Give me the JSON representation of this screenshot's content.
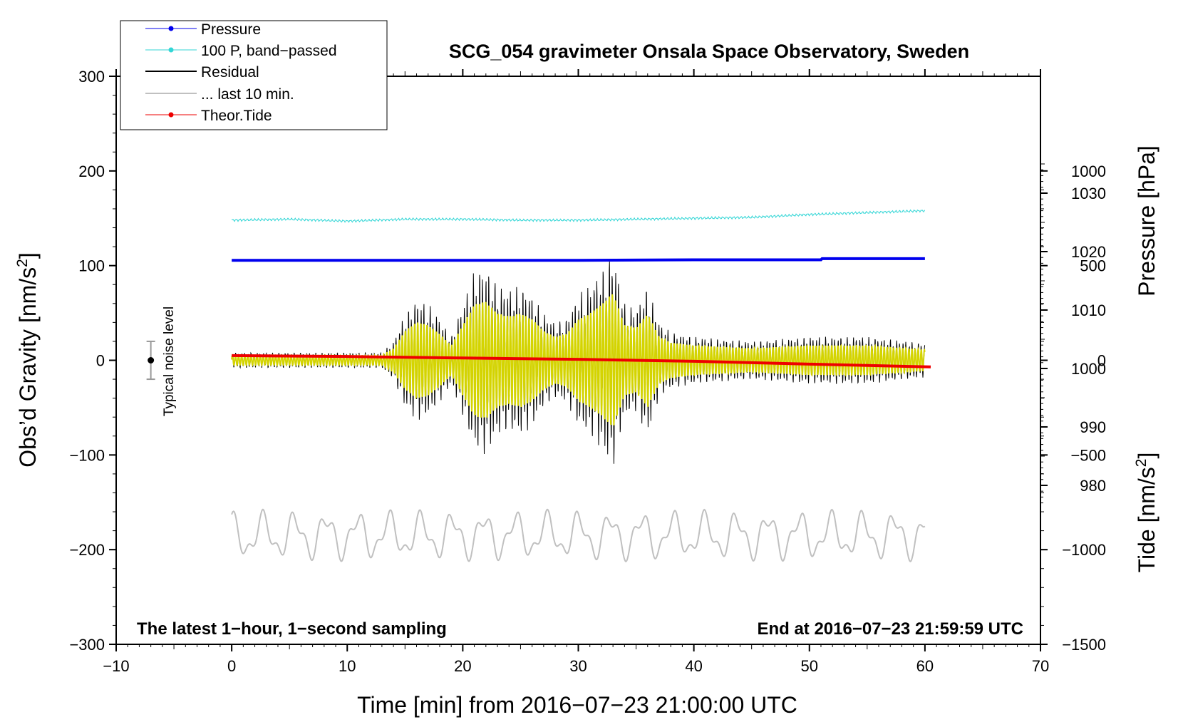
{
  "chart_data": {
    "type": "line",
    "title": "SCG_054 gravimeter Onsala Space Observatory, Sweden",
    "xlabel": "Time [min] from 2016−07−23 21:00:00 UTC",
    "ylabel_left": "Obs’d Gravity [nm/s",
    "ylabel_pressure": "Pressure [hPa]",
    "ylabel_tide": "Tide [nm/s",
    "unit_superscript": "2",
    "unit_close": "]",
    "xlim": [
      -10,
      70
    ],
    "ylim_left": [
      -300,
      300
    ],
    "x_ticks": [
      -10,
      0,
      10,
      20,
      30,
      40,
      50,
      60,
      70
    ],
    "x_tick_labels": [
      "−10",
      "0",
      "10",
      "20",
      "30",
      "40",
      "50",
      "60",
      "70"
    ],
    "y_ticks_left": [
      -300,
      -200,
      -100,
      0,
      100,
      200,
      300
    ],
    "y_tick_labels_left": [
      "−300",
      "−200",
      "−100",
      "0",
      "100",
      "200",
      "300"
    ],
    "pressure_axis": {
      "ticks": [
        980,
        990,
        1000,
        1010,
        1020,
        1030
      ],
      "labels": [
        "980",
        "990",
        "1000",
        "1010",
        "1020",
        "1030"
      ],
      "range": [
        952.8,
        1050.0
      ]
    },
    "tide_axis": {
      "ticks": [
        -1500,
        -1000,
        -500,
        0,
        500,
        1000
      ],
      "labels": [
        "−1500",
        "−1000",
        "−500",
        "0",
        "500",
        "1000"
      ],
      "range": [
        -1500,
        1500
      ]
    },
    "series": [
      {
        "name": "Pressure",
        "color": "#0000ee",
        "x": [
          0,
          10,
          20,
          30,
          40,
          51,
          51.1,
          60
        ],
        "y": [
          1018.5,
          1018.5,
          1018.5,
          1018.5,
          1018.6,
          1018.6,
          1018.8,
          1018.8
        ]
      },
      {
        "name": "100 P, band−passed",
        "color": "#33d6d6",
        "x": [
          0,
          5,
          10,
          15,
          20,
          25,
          30,
          35,
          40,
          45,
          50,
          55,
          60
        ],
        "y": [
          148,
          149,
          147,
          149,
          149,
          148,
          148,
          149,
          150,
          151,
          154,
          156,
          158
        ]
      },
      {
        "name": "Residual",
        "color": "#000000",
        "envelope_x": [
          0,
          5,
          10,
          13,
          14,
          15,
          16,
          17,
          18,
          19,
          20,
          21,
          22,
          23,
          24,
          25,
          26,
          27,
          28,
          29,
          30,
          31,
          32,
          33,
          34,
          35,
          36,
          37,
          38,
          40,
          45,
          50,
          55,
          60
        ],
        "envelope_amp": [
          8,
          8,
          8,
          8,
          20,
          50,
          65,
          60,
          45,
          25,
          60,
          95,
          100,
          80,
          75,
          80,
          70,
          50,
          40,
          45,
          70,
          80,
          95,
          115,
          60,
          55,
          80,
          40,
          30,
          25,
          20,
          25,
          25,
          18
        ]
      },
      {
        "name": "... last 10 min.",
        "color": "#c0c0c0",
        "x_range": [
          0,
          60
        ],
        "center": -185,
        "amplitude": 25
      },
      {
        "name": "Theor.Tide",
        "color": "#ee0000",
        "x": [
          0,
          10,
          20,
          30,
          40,
          50,
          60.5
        ],
        "y": [
          25,
          20,
          12,
          5,
          -5,
          -20,
          -35
        ]
      }
    ],
    "band_passed_overlay_color": "#d4d400",
    "noise_level": {
      "label": "Typical noise level",
      "center": 0,
      "half_range": 20,
      "x": -7
    },
    "annotations": {
      "bottom_left": "The latest 1−hour, 1−second sampling",
      "bottom_right": "End at 2016−07−23 21:59:59 UTC"
    }
  }
}
